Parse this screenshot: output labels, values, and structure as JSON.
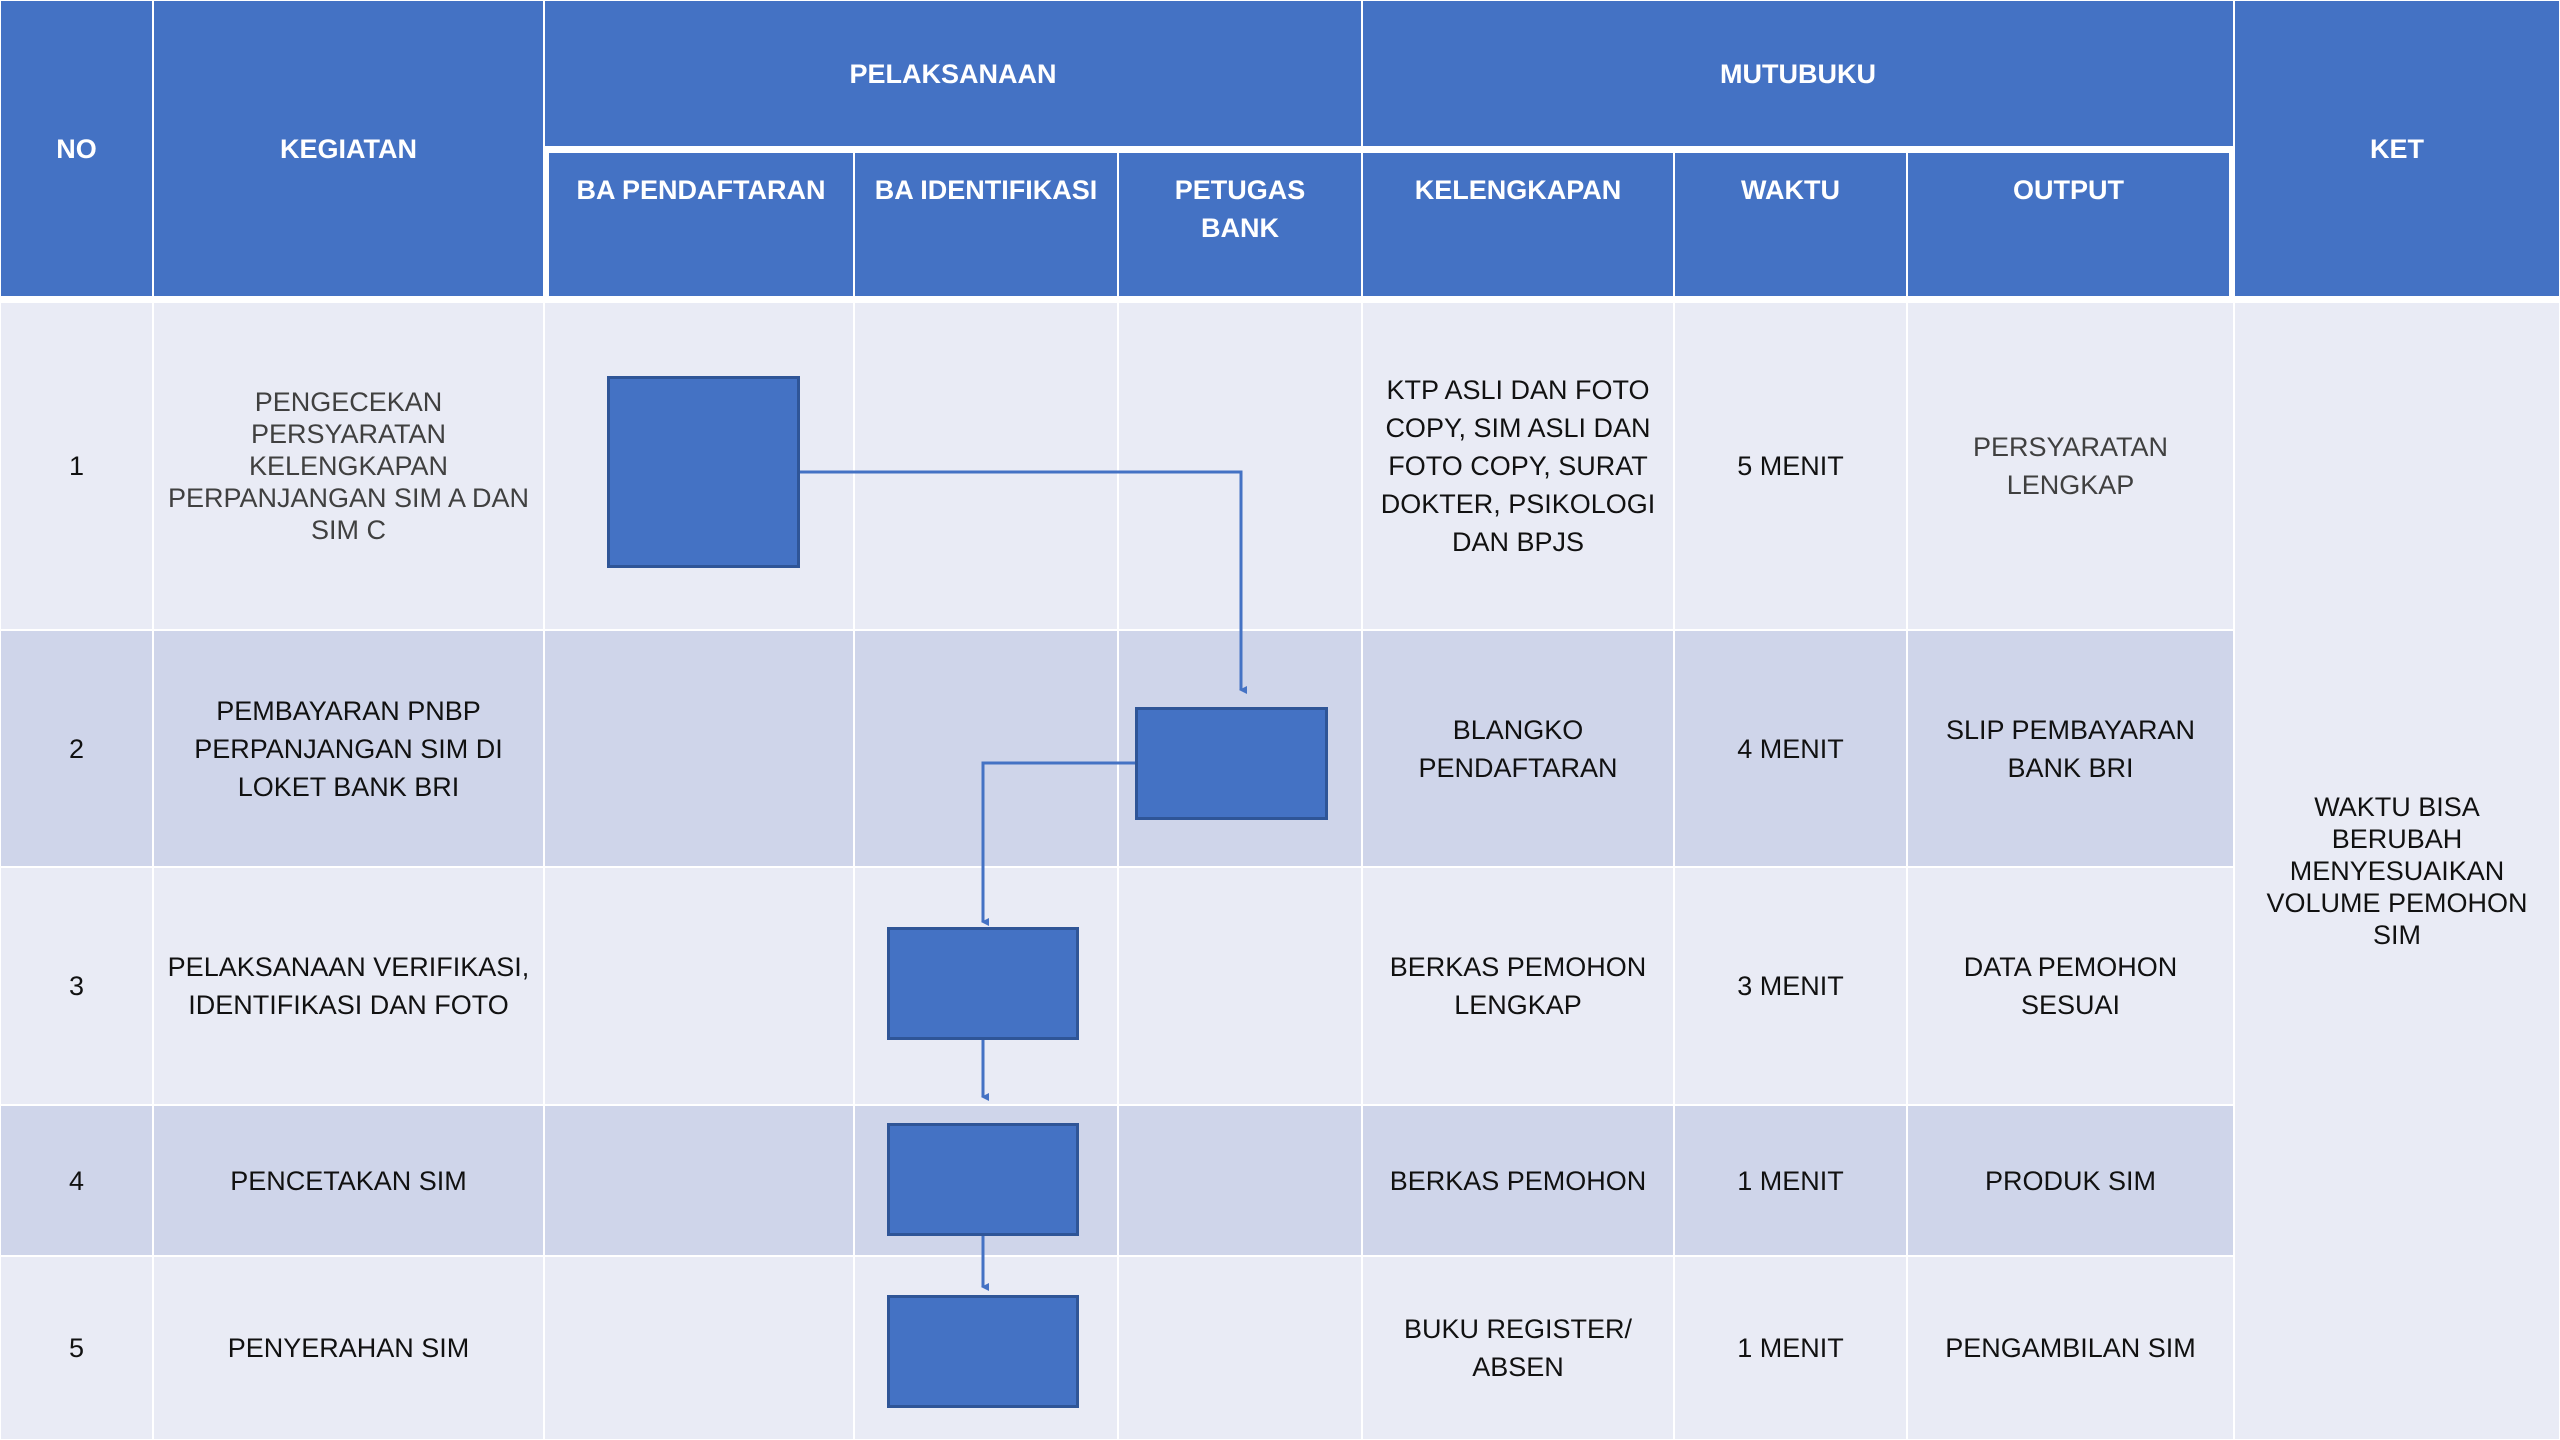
{
  "header": {
    "no": "NO",
    "kegiatan": "KEGIATAN",
    "pelaksanaan": "PELAKSANAAN",
    "mutubuku": "MUTUBUKU",
    "ket": "KET",
    "sub": [
      "BA PENDAFTARAN",
      "BA IDENTIFIKASI",
      "PETUGAS BANK",
      "KELENGKAPAN",
      "WAKTU",
      "OUTPUT"
    ]
  },
  "rows": [
    {
      "no": "1",
      "kegiatan": "PENGECEKAN PERSYARATAN KELENGKAPAN PERPANJANGAN SIM A DAN SIM C",
      "kelengkapan": "KTP ASLI DAN FOTO COPY, SIM ASLI DAN FOTO COPY, SURAT DOKTER, PSIKOLOGI DAN BPJS",
      "waktu": "5 MENIT",
      "output": "PERSYARATAN LENGKAP",
      "actor": "BA PENDAFTARAN"
    },
    {
      "no": "2",
      "kegiatan": "PEMBAYARAN PNBP PERPANJANGAN SIM DI LOKET BANK BRI",
      "kelengkapan": "BLANGKO PENDAFTARAN",
      "waktu": "4 MENIT",
      "output": "SLIP PEMBAYARAN BANK BRI",
      "actor": "PETUGAS BANK"
    },
    {
      "no": "3",
      "kegiatan": "PELAKSANAAN VERIFIKASI, IDENTIFIKASI DAN FOTO",
      "kelengkapan": "BERKAS PEMOHON LENGKAP",
      "waktu": "3 MENIT",
      "output": "DATA PEMOHON SESUAI",
      "actor": "BA IDENTIFIKASI"
    },
    {
      "no": "4",
      "kegiatan": "PENCETAKAN SIM",
      "kelengkapan": "BERKAS PEMOHON",
      "waktu": "1 MENIT",
      "output": "PRODUK SIM",
      "actor": "BA IDENTIFIKASI"
    },
    {
      "no": "5",
      "kegiatan": "PENYERAHAN SIM",
      "kelengkapan": "BUKU REGISTER/ ABSEN",
      "waktu": "1 MENIT",
      "output": "PENGAMBILAN SIM",
      "actor": "BA IDENTIFIKASI"
    }
  ],
  "ket": "WAKTU BISA BERUBAH MENYESUAIKAN VOLUME PEMOHON SIM",
  "colors": {
    "header": "#4472C4",
    "row_light": "#E9EBF5",
    "row_dark": "#CFD5EA",
    "connector": "#4472C4"
  }
}
